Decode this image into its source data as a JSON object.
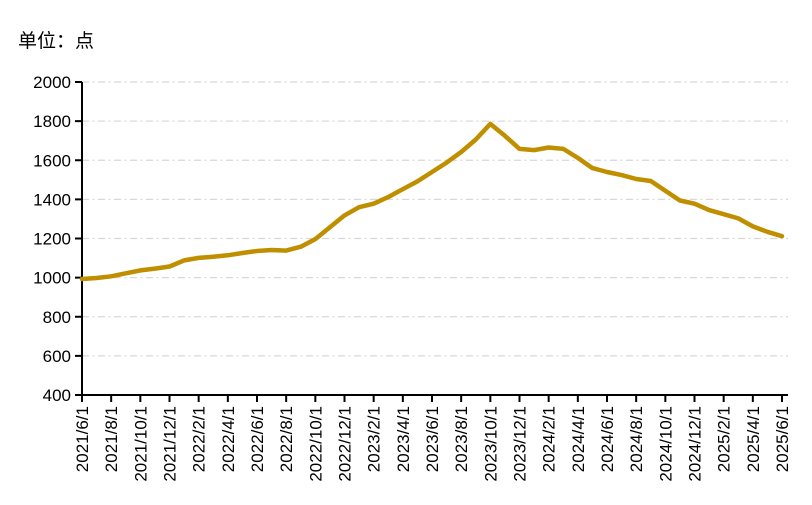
{
  "chart_data": {
    "type": "line",
    "unit_label": "单位：点",
    "legend": "none",
    "grid": "horizontal dash-dot light gray",
    "background_color": "#FFFFFF",
    "axis_color": "#000000",
    "gridline_color": "#D8D8D8",
    "line_color": "#BF8F00",
    "ylim": [
      400,
      2000
    ],
    "ytick_step": 200,
    "y_tick_labels": [
      "400",
      "600",
      "800",
      "1000",
      "1200",
      "1400",
      "1600",
      "1800",
      "2000"
    ],
    "x_tick_labels": [
      "2021/6/1",
      "2021/8/1",
      "2021/10/1",
      "2021/12/1",
      "2022/2/1",
      "2022/4/1",
      "2022/6/1",
      "2022/8/1",
      "2022/10/1",
      "2022/12/1",
      "2023/2/1",
      "2023/4/1",
      "2023/6/1",
      "2023/8/1",
      "2023/10/1",
      "2023/12/1",
      "2024/2/1",
      "2024/4/1",
      "2024/6/1",
      "2024/8/1",
      "2024/10/1",
      "2024/12/1",
      "2025/2/1",
      "2025/4/1",
      "2025/6/1"
    ],
    "x": [
      "2021/6/1",
      "2021/7/1",
      "2021/8/1",
      "2021/9/1",
      "2021/10/1",
      "2021/11/1",
      "2021/12/1",
      "2022/1/1",
      "2022/2/1",
      "2022/3/1",
      "2022/4/1",
      "2022/5/1",
      "2022/6/1",
      "2022/7/1",
      "2022/8/1",
      "2022/9/1",
      "2022/10/1",
      "2022/11/1",
      "2022/12/1",
      "2023/1/1",
      "2023/2/1",
      "2023/3/1",
      "2023/4/1",
      "2023/5/1",
      "2023/6/1",
      "2023/7/1",
      "2023/8/1",
      "2023/9/1",
      "2023/10/1",
      "2023/11/1",
      "2023/12/1",
      "2024/1/1",
      "2024/2/1",
      "2024/3/1",
      "2024/4/1",
      "2024/5/1",
      "2024/6/1",
      "2024/7/1",
      "2024/8/1",
      "2024/9/1",
      "2024/10/1",
      "2024/11/1",
      "2024/12/1",
      "2025/1/1",
      "2025/2/1",
      "2025/3/1",
      "2025/4/1",
      "2025/5/1",
      "2025/6/1"
    ],
    "series": [
      {
        "color": "#BF8F00",
        "values": [
          993,
          998,
          1007,
          1022,
          1037,
          1046,
          1057,
          1088,
          1101,
          1107,
          1114,
          1126,
          1136,
          1141,
          1138,
          1158,
          1197,
          1258,
          1318,
          1360,
          1378,
          1412,
          1452,
          1492,
          1540,
          1588,
          1642,
          1706,
          1786,
          1725,
          1658,
          1652,
          1665,
          1658,
          1612,
          1560,
          1540,
          1524,
          1504,
          1494,
          1444,
          1394,
          1378,
          1345,
          1324,
          1303,
          1262,
          1234,
          1212
        ]
      }
    ]
  }
}
